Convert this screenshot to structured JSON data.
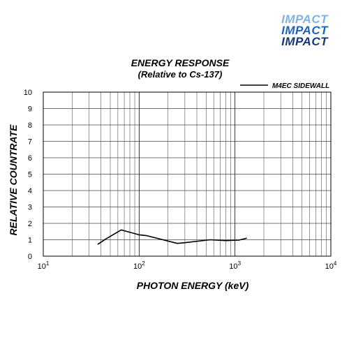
{
  "logo": {
    "line1": "IMPACT",
    "line2": "IMPACT",
    "line3": "IMPACT"
  },
  "chart_data": {
    "type": "line",
    "title": "ENERGY RESPONSE",
    "subtitle": "(Relative to Cs-137)",
    "xlabel": "PHOTON ENERGY (keV)",
    "ylabel": "RELATIVE COUNTRATE",
    "x_scale": "log",
    "xlim": [
      10,
      10000
    ],
    "ylim": [
      0,
      10
    ],
    "grid": true,
    "legend_position": "top-right",
    "x_ticks": [
      {
        "value": 10,
        "base": "10",
        "exp": "1"
      },
      {
        "value": 100,
        "base": "10",
        "exp": "2"
      },
      {
        "value": 1000,
        "base": "10",
        "exp": "3"
      },
      {
        "value": 10000,
        "base": "10",
        "exp": "4"
      }
    ],
    "y_ticks": [
      "0",
      "1",
      "2",
      "3",
      "4",
      "5",
      "6",
      "7",
      "8",
      "9",
      "10"
    ],
    "series": [
      {
        "name": "M4EC SIDEWALL",
        "color": "#000000",
        "x": [
          37,
          45,
          65,
          100,
          120,
          250,
          300,
          550,
          800,
          1100,
          1330
        ],
        "y": [
          0.72,
          1.05,
          1.6,
          1.3,
          1.25,
          0.78,
          0.82,
          1.0,
          0.95,
          0.98,
          1.1
        ]
      }
    ]
  }
}
